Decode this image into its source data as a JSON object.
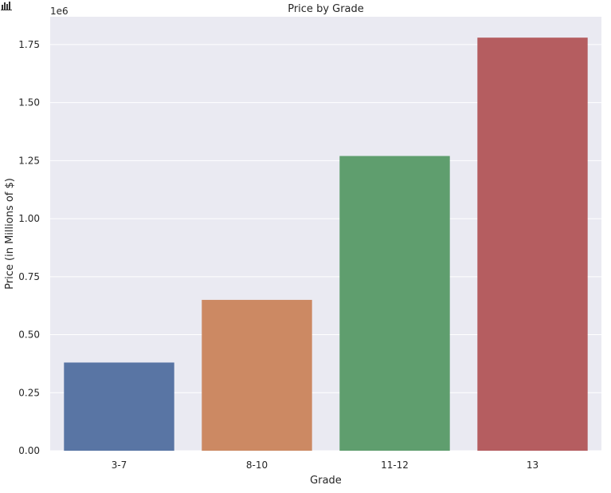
{
  "toolbar": {
    "icon": "bar-chart-icon"
  },
  "chart_data": {
    "type": "bar",
    "title": "Price by Grade",
    "xlabel": "Grade",
    "ylabel": "Price (in Millions of $)",
    "y_offset_label": "1e6",
    "categories": [
      "3-7",
      "8-10",
      "11-12",
      "13"
    ],
    "values": [
      380000,
      650000,
      1270000,
      1780000
    ],
    "colors": [
      "#5975a4",
      "#cc8963",
      "#5f9e6e",
      "#b55d60"
    ],
    "ylim": [
      0,
      1870000
    ],
    "yticks": [
      0,
      250000,
      500000,
      750000,
      1000000,
      1250000,
      1500000,
      1750000
    ],
    "ytick_labels": [
      "0.00",
      "0.25",
      "0.50",
      "0.75",
      "1.00",
      "1.25",
      "1.50",
      "1.75"
    ],
    "grid": true,
    "background": "#eaeaf2"
  }
}
